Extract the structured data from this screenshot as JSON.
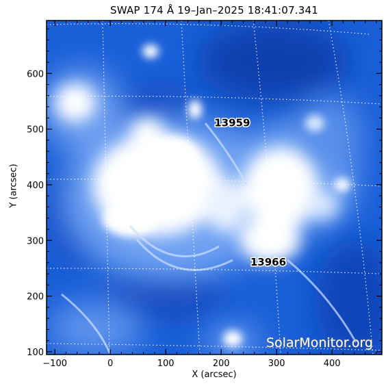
{
  "title": "SWAP 174 Å 19–Jan–2025 18:41:07.341",
  "x_axis": {
    "label": "X (arcsec)",
    "range": [
      -115,
      490
    ],
    "ticks": [
      "−100",
      "0",
      "100",
      "200",
      "300",
      "400"
    ]
  },
  "y_axis": {
    "label": "Y (arcsec)",
    "range": [
      95,
      695
    ],
    "ticks": [
      "100",
      "200",
      "300",
      "400",
      "500",
      "600"
    ]
  },
  "regions": [
    {
      "number": "13959",
      "x": 220,
      "y": 505
    },
    {
      "number": "13966",
      "x": 285,
      "y": 255
    }
  ],
  "watermark": "SolarMonitor.org",
  "colors": {
    "background": "#1a5fd8",
    "highlight": "#ffffff",
    "grid": "#ffffff",
    "frame": "#000000"
  }
}
